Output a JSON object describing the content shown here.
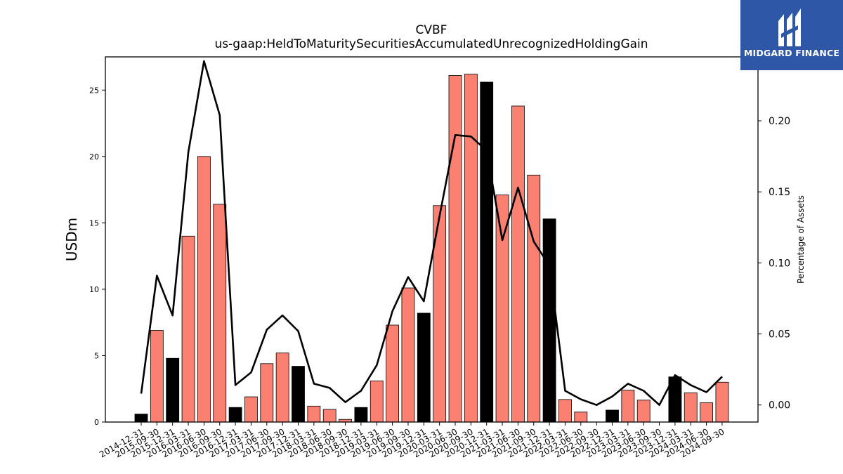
{
  "chart_data": {
    "type": "bar",
    "title": "CVBF",
    "subtitle": "us-gaap:HeldToMaturitySecuritiesAccumulatedUnrecognizedHoldingGain",
    "ylabel": "USDm",
    "y2label": "Percentage of Assets",
    "ylim": [
      0,
      27.5
    ],
    "y2lim": [
      -0.012,
      0.245
    ],
    "yticks": [
      0,
      5,
      10,
      15,
      20,
      25
    ],
    "y2ticks": [
      "0.00",
      "0.05",
      "0.10",
      "0.15",
      "0.20"
    ],
    "categories": [
      "2014-12-31",
      "2015-09-30",
      "2015-12-31",
      "2016-03-31",
      "2016-06-30",
      "2016-09-30",
      "2016-12-31",
      "2017-03-31",
      "2017-06-30",
      "2017-09-30",
      "2017-12-31",
      "2018-03-31",
      "2018-06-30",
      "2018-09-30",
      "2018-12-31",
      "2019-03-31",
      "2019-06-30",
      "2019-09-30",
      "2019-12-31",
      "2020-03-31",
      "2020-06-30",
      "2020-09-30",
      "2020-12-31",
      "2021-03-31",
      "2021-06-30",
      "2021-09-30",
      "2021-12-31",
      "2022-03-31",
      "2022-06-30",
      "2022-09-30",
      "2022-12-31",
      "2023-03-31",
      "2023-06-30",
      "2023-09-30",
      "2023-12-31",
      "2024-03-31",
      "2024-06-30",
      "2024-09-30"
    ],
    "series": [
      {
        "type": "bar",
        "values": [
          0.6,
          6.9,
          4.8,
          14.0,
          20.0,
          16.4,
          1.1,
          1.9,
          4.4,
          5.2,
          4.2,
          1.2,
          0.95,
          0.2,
          1.1,
          3.1,
          7.3,
          10.1,
          8.2,
          16.3,
          26.1,
          26.2,
          25.6,
          17.1,
          23.8,
          18.6,
          15.3,
          1.7,
          0.75,
          0.0,
          0.9,
          2.4,
          1.65,
          0.0,
          3.4,
          2.2,
          1.45,
          3.0
        ]
      },
      {
        "type": "line",
        "axis": "right",
        "values": [
          0.008,
          0.091,
          0.063,
          0.178,
          0.242,
          0.204,
          0.014,
          0.023,
          0.053,
          0.063,
          0.052,
          0.015,
          0.012,
          0.002,
          0.01,
          0.028,
          0.066,
          0.09,
          0.073,
          0.133,
          0.19,
          0.189,
          0.179,
          0.116,
          0.153,
          0.115,
          0.098,
          0.01,
          0.004,
          0.0,
          0.006,
          0.015,
          0.01,
          0.0,
          0.021,
          0.014,
          0.009,
          0.02
        ]
      }
    ],
    "bar_colors": [
      "#000000",
      "#fa8072",
      "#000000",
      "#fa8072",
      "#fa8072",
      "#fa8072",
      "#000000",
      "#fa8072",
      "#fa8072",
      "#fa8072",
      "#000000",
      "#fa8072",
      "#fa8072",
      "#fa8072",
      "#000000",
      "#fa8072",
      "#fa8072",
      "#fa8072",
      "#000000",
      "#fa8072",
      "#fa8072",
      "#fa8072",
      "#000000",
      "#fa8072",
      "#fa8072",
      "#fa8072",
      "#000000",
      "#fa8072",
      "#fa8072",
      "#fa8072",
      "#000000",
      "#fa8072",
      "#fa8072",
      "#fa8072",
      "#000000",
      "#fa8072",
      "#fa8072",
      "#fa8072"
    ],
    "colors": {
      "salmon": "#fa8072",
      "black": "#000000",
      "line": "#000000"
    },
    "grid": false
  },
  "logo": {
    "text": "MIDGARD FINANCE",
    "background": "#2f57a8",
    "icon": "midgard-logo-icon"
  }
}
